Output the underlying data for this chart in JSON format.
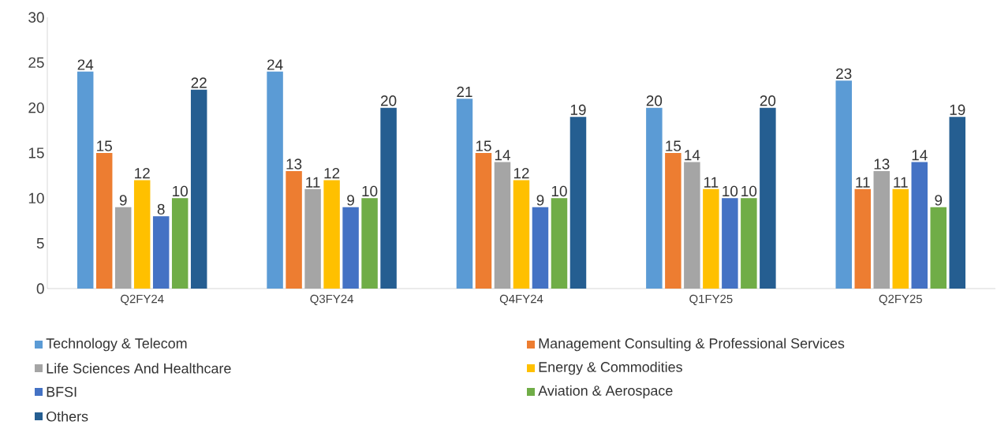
{
  "chart_data": {
    "type": "bar",
    "categories": [
      "Q2FY24",
      "Q3FY24",
      "Q4FY24",
      "Q1FY25",
      "Q2FY25"
    ],
    "series": [
      {
        "name": "Technology & Telecom",
        "color": "#5b9bd5",
        "values": [
          24,
          24,
          21,
          20,
          23
        ]
      },
      {
        "name": "Management Consulting & Professional Services",
        "color": "#ed7d31",
        "values": [
          15,
          13,
          15,
          15,
          11
        ]
      },
      {
        "name": "Life Sciences And Healthcare",
        "color": "#a5a5a5",
        "values": [
          9,
          11,
          14,
          14,
          13
        ]
      },
      {
        "name": "Energy & Commodities",
        "color": "#ffc000",
        "values": [
          12,
          12,
          12,
          11,
          11
        ]
      },
      {
        "name": "BFSI",
        "color": "#4472c4",
        "values": [
          8,
          9,
          9,
          10,
          14
        ]
      },
      {
        "name": "Aviation & Aerospace",
        "color": "#70ad47",
        "values": [
          10,
          10,
          10,
          10,
          9
        ]
      },
      {
        "name": "Others",
        "color": "#255e91",
        "values": [
          22,
          20,
          19,
          20,
          19
        ]
      }
    ],
    "ylim": [
      0,
      30
    ],
    "yticks": [
      0,
      5,
      10,
      15,
      20,
      25,
      30
    ],
    "grid": false,
    "legend": "bottom",
    "data_labels": true
  }
}
